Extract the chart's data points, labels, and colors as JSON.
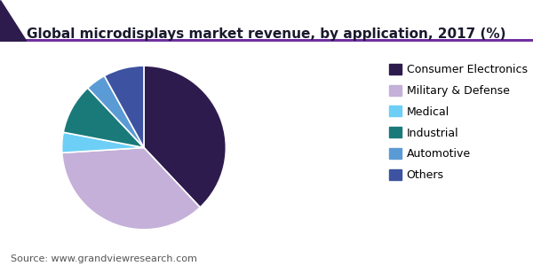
{
  "title": "Global microdisplays market revenue, by application, 2017 (%)",
  "source": "Source: www.grandviewresearch.com",
  "labels": [
    "Consumer Electronics",
    "Military & Defense",
    "Medical",
    "Industrial",
    "Automotive",
    "Others"
  ],
  "values": [
    38,
    36,
    4,
    10,
    4,
    8
  ],
  "colors": [
    "#2d1b4e",
    "#c4b0d8",
    "#6dcff6",
    "#1a7a7a",
    "#5b9bd5",
    "#3d52a0"
  ],
  "legend_fontsize": 9,
  "title_fontsize": 11,
  "source_fontsize": 8,
  "startangle": 90,
  "background_color": "#ffffff",
  "title_color": "#1a1a2e",
  "header_line_color": "#7030a0",
  "header_triangle_color": "#2d1b4e"
}
